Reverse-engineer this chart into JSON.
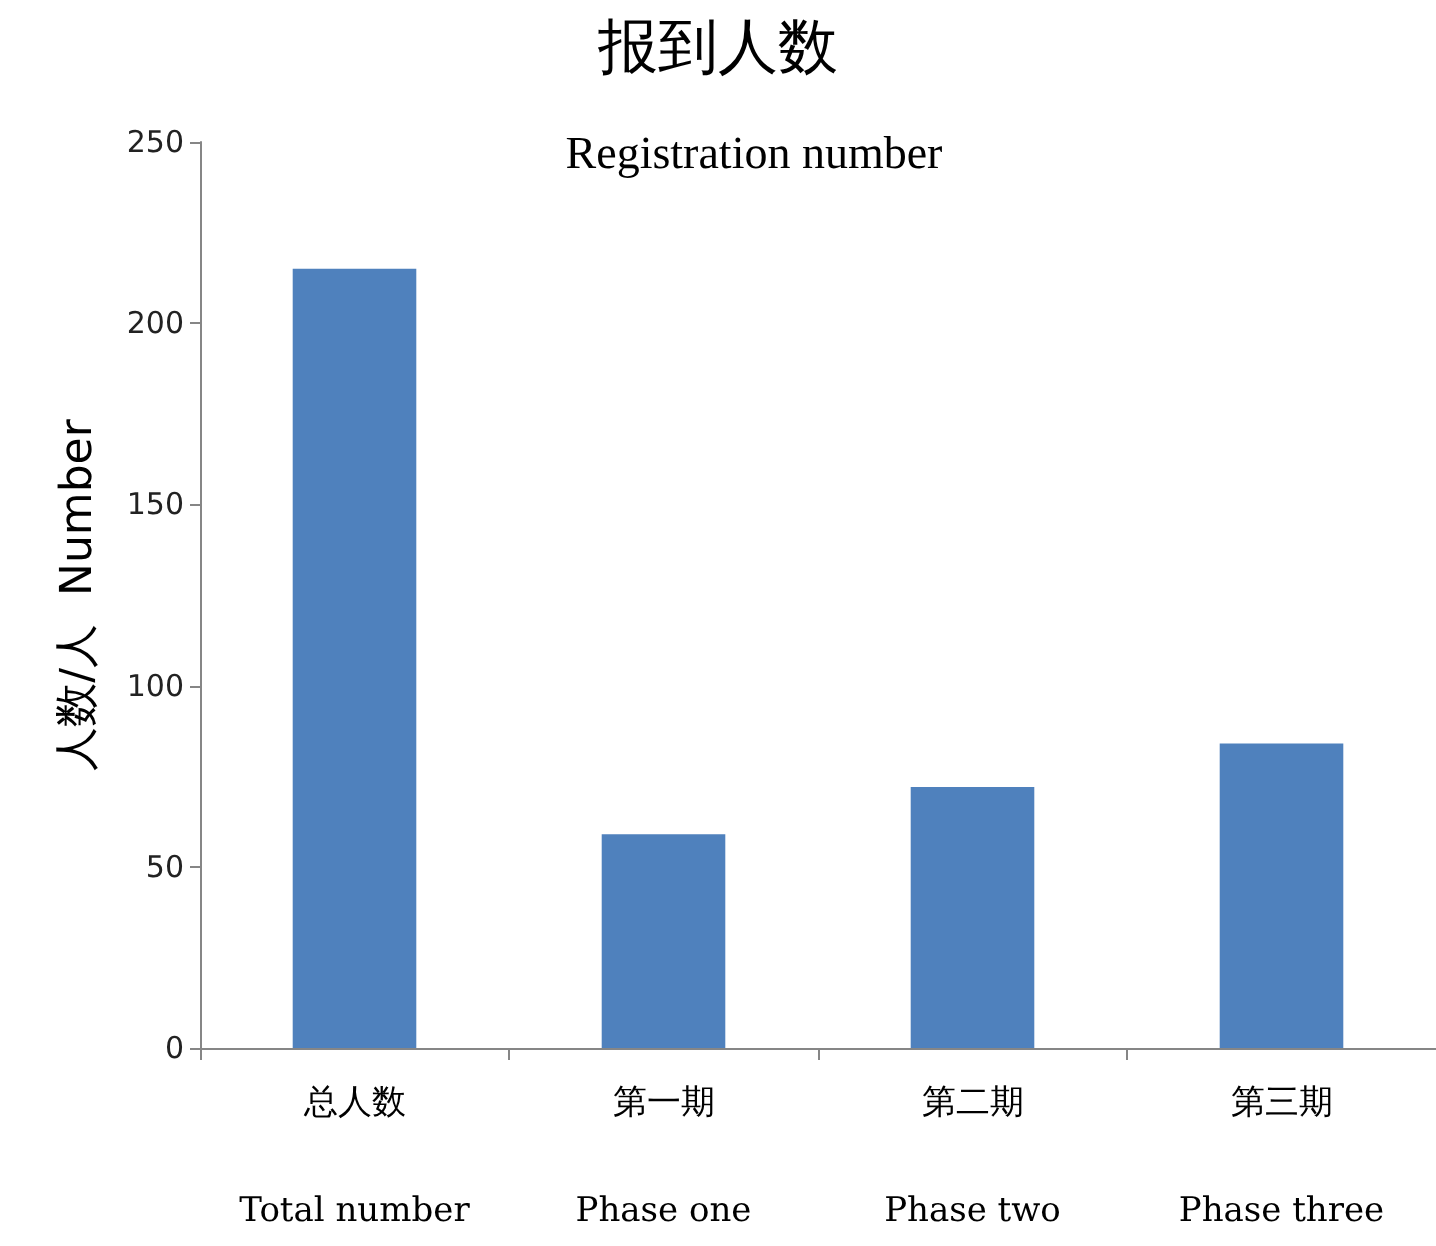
{
  "chart_data": {
    "type": "bar",
    "title": "报到人数",
    "subtitle": "Registration number",
    "ylabel": "人数/人  Number",
    "categories": [
      "总人数\nTotal number",
      "第一期\nPhase one",
      "第二期\nPhase two",
      "第三期\nPhase three"
    ],
    "values": [
      215,
      59,
      72,
      84
    ],
    "color": "#4f81bd",
    "ylim": [
      0,
      250
    ],
    "yticks": [
      0,
      50,
      100,
      150,
      200,
      250
    ],
    "grid": false
  }
}
